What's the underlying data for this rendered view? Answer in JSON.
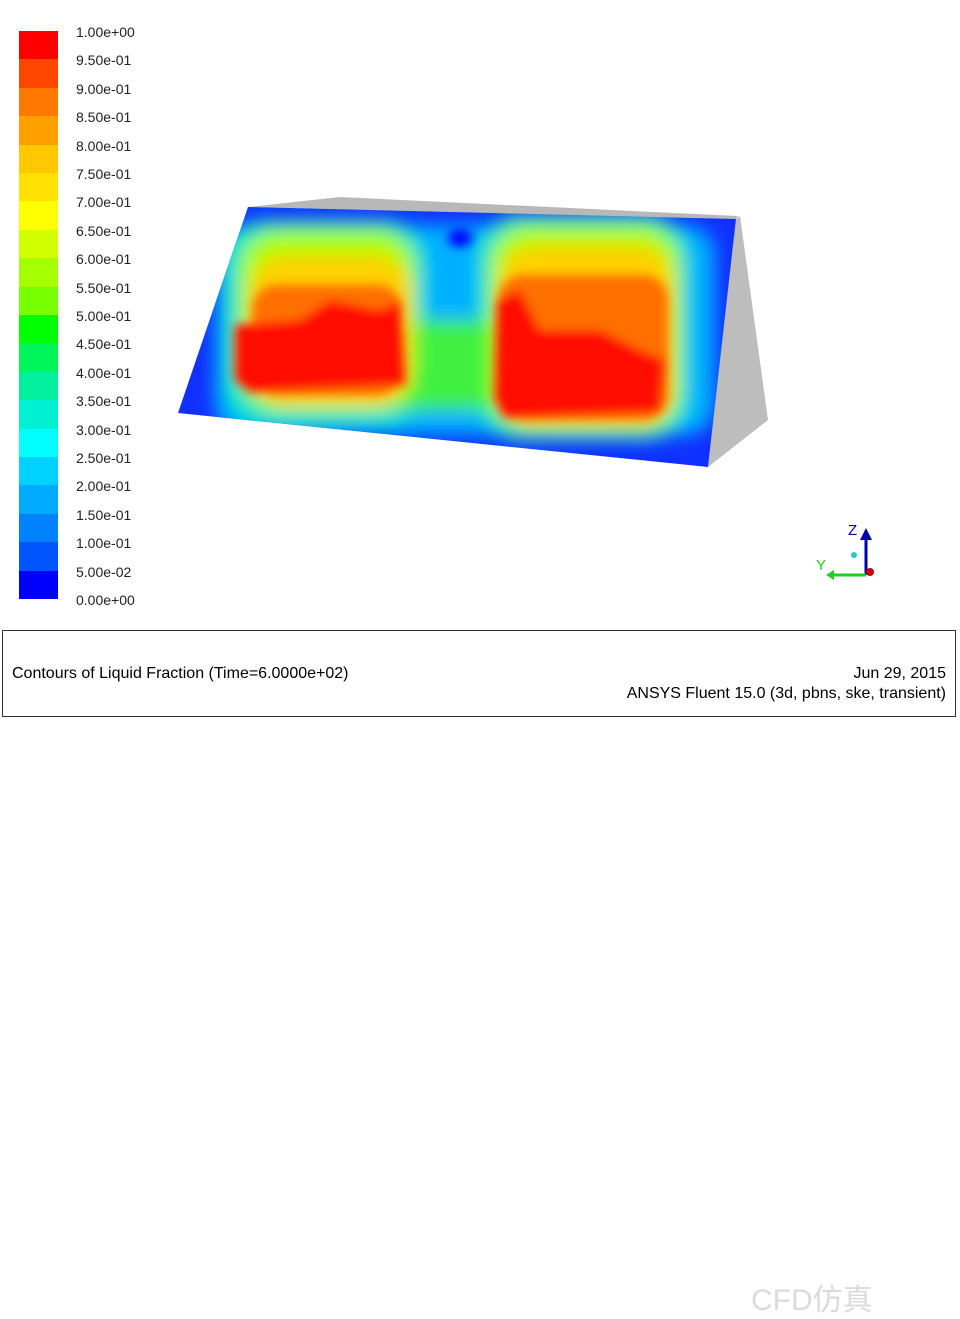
{
  "chart_data": {
    "type": "heatmap",
    "title": "Contours of Liquid Fraction  (Time=6.0000e+02)",
    "colorbar": {
      "range": [
        0,
        1
      ],
      "tick_labels": [
        "1.00e+00",
        "9.50e-01",
        "9.00e-01",
        "8.50e-01",
        "8.00e-01",
        "7.50e-01",
        "7.00e-01",
        "6.50e-01",
        "6.00e-01",
        "5.50e-01",
        "5.00e-01",
        "4.50e-01",
        "4.00e-01",
        "3.50e-01",
        "3.00e-01",
        "2.50e-01",
        "2.00e-01",
        "1.50e-01",
        "1.00e-01",
        "5.00e-02",
        "0.00e+00"
      ],
      "band_colors": [
        "#ff0000",
        "#ff4600",
        "#ff7800",
        "#ffa000",
        "#ffc800",
        "#ffe100",
        "#ffff00",
        "#d2ff00",
        "#a5ff00",
        "#78ff00",
        "#00ff00",
        "#00f55a",
        "#00f0a0",
        "#00f0d2",
        "#00ffff",
        "#00d2ff",
        "#00aaff",
        "#0082ff",
        "#0055ff",
        "#0000ff"
      ]
    },
    "axes_triad": {
      "labels": [
        "Z",
        "Y"
      ],
      "colors": {
        "z": "#0000aa",
        "y": "#22cc22",
        "x": "#cc0000"
      }
    }
  },
  "footer": {
    "title": "Contours of Liquid Fraction  (Time=6.0000e+02)",
    "date": "Jun 29, 2015",
    "software": "ANSYS Fluent 15.0 (3d, pbns, ske, transient)"
  },
  "watermark": "CFD仿真"
}
